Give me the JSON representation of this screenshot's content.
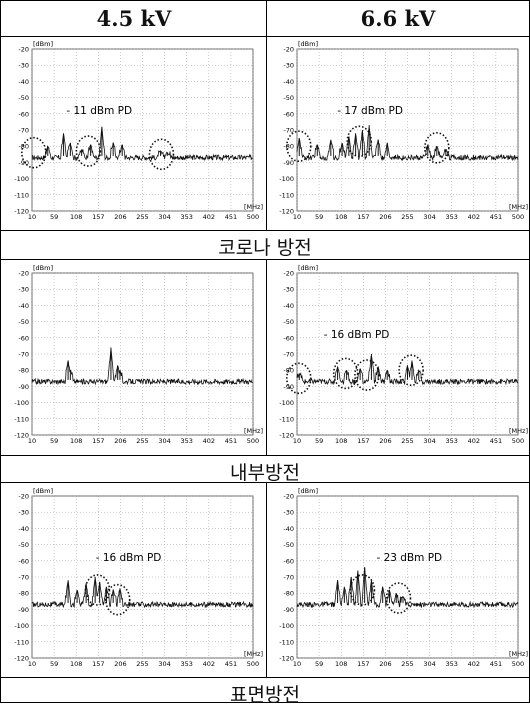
{
  "columns": [
    "4.5 kV",
    "6.6 kV"
  ],
  "sections": [
    "코로나 방전",
    "내부방전",
    "표면방전"
  ],
  "chart_data": [
    {
      "type": "line",
      "section": "코로나 방전",
      "voltage": "4.5 kV",
      "ylabel": "[dBm]",
      "xlabel": "[MHz]",
      "ylim": [
        -120,
        -20
      ],
      "xlim": [
        10,
        500
      ],
      "yticks": [
        -20,
        -30,
        -40,
        -50,
        -60,
        -70,
        -80,
        -90,
        -100,
        -110,
        -120
      ],
      "xticks": [
        10,
        59,
        108,
        157,
        206,
        255,
        304,
        353,
        402,
        451,
        500
      ],
      "annotation": "- 11 dBm PD",
      "peaks": [
        [
          45,
          -80
        ],
        [
          80,
          -72
        ],
        [
          95,
          -78
        ],
        [
          120,
          -82
        ],
        [
          140,
          -79
        ],
        [
          165,
          -68
        ],
        [
          190,
          -78
        ],
        [
          210,
          -79
        ],
        [
          295,
          -83
        ],
        [
          310,
          -84
        ]
      ],
      "circles": [
        [
          14,
          -84
        ],
        [
          135,
          -83
        ],
        [
          297,
          -85
        ]
      ]
    },
    {
      "type": "line",
      "section": "코로나 방전",
      "voltage": "6.6 kV",
      "ylabel": "[dBm]",
      "xlabel": "[MHz]",
      "ylim": [
        -120,
        -20
      ],
      "xlim": [
        10,
        500
      ],
      "yticks": [
        -20,
        -30,
        -40,
        -50,
        -60,
        -70,
        -80,
        -90,
        -100,
        -110,
        -120
      ],
      "xticks": [
        10,
        59,
        108,
        157,
        206,
        255,
        304,
        353,
        402,
        451,
        500
      ],
      "annotation": "- 17 dBm PD",
      "peaks": [
        [
          15,
          -75
        ],
        [
          55,
          -79
        ],
        [
          85,
          -76
        ],
        [
          110,
          -78
        ],
        [
          125,
          -74
        ],
        [
          140,
          -72
        ],
        [
          155,
          -70
        ],
        [
          170,
          -67
        ],
        [
          190,
          -76
        ],
        [
          210,
          -78
        ],
        [
          300,
          -79
        ],
        [
          320,
          -80
        ],
        [
          340,
          -82
        ]
      ],
      "circles": [
        [
          14,
          -80
        ],
        [
          148,
          -77
        ],
        [
          320,
          -81
        ]
      ]
    },
    {
      "type": "line",
      "section": "내부방전",
      "voltage": "4.5 kV",
      "ylabel": "[dBm]",
      "xlabel": "[MHz]",
      "ylim": [
        -120,
        -20
      ],
      "xlim": [
        10,
        500
      ],
      "yticks": [
        -20,
        -30,
        -40,
        -50,
        -60,
        -70,
        -80,
        -90,
        -100,
        -110,
        -120
      ],
      "xticks": [
        10,
        59,
        108,
        157,
        206,
        255,
        304,
        353,
        402,
        451,
        500
      ],
      "annotation": "",
      "peaks": [
        [
          90,
          -74
        ],
        [
          95,
          -80
        ],
        [
          185,
          -66
        ],
        [
          200,
          -77
        ],
        [
          205,
          -80
        ]
      ],
      "circles": []
    },
    {
      "type": "line",
      "section": "내부방전",
      "voltage": "6.6 kV",
      "ylabel": "[dBm]",
      "xlabel": "[MHz]",
      "ylim": [
        -120,
        -20
      ],
      "xlim": [
        10,
        500
      ],
      "yticks": [
        -20,
        -30,
        -40,
        -50,
        -60,
        -70,
        -80,
        -90,
        -100,
        -110,
        -120
      ],
      "xticks": [
        10,
        59,
        108,
        157,
        206,
        255,
        304,
        353,
        402,
        451,
        500
      ],
      "annotation": "- 16 dBm PD",
      "peaks": [
        [
          15,
          -82
        ],
        [
          100,
          -78
        ],
        [
          120,
          -80
        ],
        [
          150,
          -79
        ],
        [
          175,
          -70
        ],
        [
          190,
          -78
        ],
        [
          210,
          -80
        ],
        [
          255,
          -77
        ],
        [
          265,
          -74
        ],
        [
          280,
          -80
        ]
      ],
      "circles": [
        [
          14,
          -85
        ],
        [
          118,
          -82
        ],
        [
          165,
          -83
        ],
        [
          263,
          -80
        ]
      ]
    },
    {
      "type": "line",
      "section": "표면방전",
      "voltage": "4.5 kV",
      "ylabel": "[dBm]",
      "xlabel": "[MHz]",
      "ylim": [
        -120,
        -20
      ],
      "xlim": [
        10,
        500
      ],
      "yticks": [
        -20,
        -30,
        -40,
        -50,
        -60,
        -70,
        -80,
        -90,
        -100,
        -110,
        -120
      ],
      "xticks": [
        10,
        59,
        108,
        157,
        206,
        255,
        304,
        353,
        402,
        451,
        500
      ],
      "annotation": "- 16 dBm PD",
      "peaks": [
        [
          90,
          -72
        ],
        [
          110,
          -78
        ],
        [
          130,
          -74
        ],
        [
          150,
          -70
        ],
        [
          160,
          -73
        ],
        [
          175,
          -76
        ],
        [
          190,
          -78
        ],
        [
          205,
          -77
        ]
      ],
      "circles": [
        [
          155,
          -78
        ],
        [
          200,
          -84
        ]
      ]
    },
    {
      "type": "line",
      "section": "표면방전",
      "voltage": "6.6 kV",
      "ylabel": "[dBm]",
      "xlabel": "[MHz]",
      "ylim": [
        -120,
        -20
      ],
      "xlim": [
        10,
        500
      ],
      "yticks": [
        -20,
        -30,
        -40,
        -50,
        -60,
        -70,
        -80,
        -90,
        -100,
        -110,
        -120
      ],
      "xticks": [
        10,
        59,
        108,
        157,
        206,
        255,
        304,
        353,
        402,
        451,
        500
      ],
      "annotation": "- 23 dBm PD",
      "peaks": [
        [
          100,
          -72
        ],
        [
          115,
          -76
        ],
        [
          130,
          -70
        ],
        [
          145,
          -66
        ],
        [
          160,
          -64
        ],
        [
          175,
          -72
        ],
        [
          200,
          -76
        ],
        [
          215,
          -78
        ],
        [
          230,
          -80
        ],
        [
          245,
          -82
        ]
      ],
      "circles": [
        [
          155,
          -78
        ],
        [
          235,
          -83
        ]
      ]
    }
  ]
}
